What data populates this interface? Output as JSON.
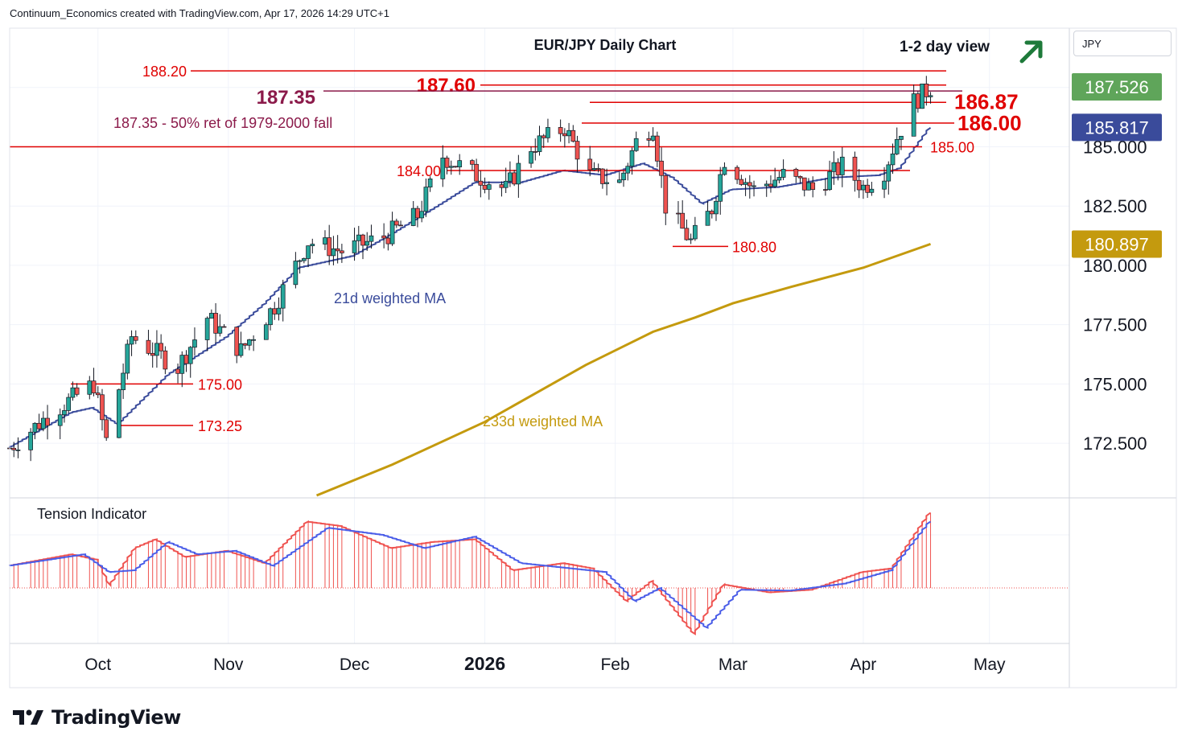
{
  "header": {
    "attribution": "Continuum_Economics created with TradingView.com, Apr 17, 2026 14:29 UTC+1"
  },
  "currency_label": "JPY",
  "brand": {
    "name": "TradingView"
  },
  "colors": {
    "bull": "#26a69a",
    "bear": "#ef5350",
    "ma21": "#3a4b9b",
    "ma233": "#c49a0e",
    "level": "#e00000",
    "ret": "#8b1a4a",
    "arrow": "#1e7a3a",
    "last_price": "#5fa55a"
  },
  "chart_data": [
    {
      "type": "candlestick",
      "title": "EUR/JPY Daily Chart",
      "view_note": "1-2 day view",
      "view_direction": "up",
      "ylim": [
        170.3,
        190.0
      ],
      "y_ticks": [
        "172.500",
        "175.000",
        "177.500",
        "180.000",
        "182.500",
        "185.000"
      ],
      "x_ticks": [
        {
          "label": "Oct",
          "date": "2025-10-01"
        },
        {
          "label": "Nov",
          "date": "2025-11-01"
        },
        {
          "label": "Dec",
          "date": "2025-12-01"
        },
        {
          "label": "2026",
          "date": "2026-01-01"
        },
        {
          "label": "Feb",
          "date": "2026-02-01"
        },
        {
          "label": "Mar",
          "date": "2026-03-01"
        },
        {
          "label": "Apr",
          "date": "2026-04-01"
        },
        {
          "label": "May",
          "date": "2026-05-01"
        }
      ],
      "xrange": [
        "2025-09-10",
        "2026-05-20"
      ],
      "price_badges": [
        {
          "value": "187.526",
          "color": "#5fa55a"
        },
        {
          "value": "185.817",
          "color": "#3a4b9b"
        },
        {
          "value": "180.897",
          "color": "#c49a0e"
        }
      ],
      "levels": [
        {
          "label": "188.20",
          "value": 188.2
        },
        {
          "label": "187.60",
          "value": 187.6
        },
        {
          "label": "187.35",
          "value": 187.35
        },
        {
          "label": "186.87",
          "value": 186.87
        },
        {
          "label": "186.00",
          "value": 186.0
        },
        {
          "label": "185.00",
          "value": 185.0
        },
        {
          "label": "184.00",
          "value": 184.0
        },
        {
          "label": "180.80",
          "value": 180.8
        },
        {
          "label": "175.00",
          "value": 175.0
        },
        {
          "label": "173.25",
          "value": 173.25
        }
      ],
      "annotations": [
        {
          "text": "187.35 - 50% ret of 1979-2000 fall"
        },
        {
          "text": "21d weighted MA"
        },
        {
          "text": "233d weighted MA"
        }
      ],
      "anchors": [
        [
          "2025-09-10",
          172.3
        ],
        [
          "2025-09-20",
          173.8
        ],
        [
          "2025-09-30",
          175.0
        ],
        [
          "2025-10-03",
          172.6
        ],
        [
          "2025-10-09",
          177.0
        ],
        [
          "2025-10-20",
          175.7
        ],
        [
          "2025-10-27",
          177.8
        ],
        [
          "2025-11-04",
          176.4
        ],
        [
          "2025-11-12",
          178.3
        ],
        [
          "2025-11-20",
          181.0
        ],
        [
          "2025-11-28",
          180.6
        ],
        [
          "2025-12-08",
          181.2
        ],
        [
          "2025-12-16",
          182.1
        ],
        [
          "2025-12-22",
          184.6
        ],
        [
          "2025-12-30",
          183.8
        ],
        [
          "2026-01-06",
          183.2
        ],
        [
          "2026-01-12",
          185.0
        ],
        [
          "2026-01-20",
          185.8
        ],
        [
          "2026-01-26",
          183.8
        ],
        [
          "2026-02-02",
          183.5
        ],
        [
          "2026-02-06",
          185.2
        ],
        [
          "2026-02-10",
          185.9
        ],
        [
          "2026-02-13",
          182.5
        ],
        [
          "2026-02-19",
          181.0
        ],
        [
          "2026-02-24",
          182.4
        ],
        [
          "2026-02-27",
          184.5
        ],
        [
          "2026-03-06",
          183.2
        ],
        [
          "2026-03-13",
          183.8
        ],
        [
          "2026-03-20",
          183.2
        ],
        [
          "2026-03-27",
          184.2
        ],
        [
          "2026-04-01",
          183.3
        ],
        [
          "2026-04-06",
          184.0
        ],
        [
          "2026-04-09",
          185.4
        ],
        [
          "2026-04-13",
          186.9
        ],
        [
          "2026-04-17",
          187.5
        ]
      ],
      "ma21_anchors": [
        [
          "2025-09-10",
          172.3
        ],
        [
          "2025-09-25",
          173.8
        ],
        [
          "2025-09-30",
          174.0
        ],
        [
          "2025-10-06",
          173.3
        ],
        [
          "2025-10-18",
          175.4
        ],
        [
          "2025-11-01",
          177.0
        ],
        [
          "2025-11-10",
          178.4
        ],
        [
          "2025-11-18",
          179.9
        ],
        [
          "2025-12-01",
          180.4
        ],
        [
          "2025-12-10",
          181.3
        ],
        [
          "2025-12-22",
          182.6
        ],
        [
          "2025-12-30",
          183.5
        ],
        [
          "2026-01-10",
          183.5
        ],
        [
          "2026-01-20",
          184.0
        ],
        [
          "2026-01-30",
          183.8
        ],
        [
          "2026-02-08",
          184.3
        ],
        [
          "2026-02-15",
          183.7
        ],
        [
          "2026-02-22",
          182.6
        ],
        [
          "2026-03-01",
          183.2
        ],
        [
          "2026-03-12",
          183.3
        ],
        [
          "2026-03-25",
          183.7
        ],
        [
          "2026-04-05",
          183.8
        ],
        [
          "2026-04-10",
          184.1
        ],
        [
          "2026-04-17",
          185.8
        ]
      ],
      "ma233_anchors": [
        [
          "2025-11-22",
          170.3
        ],
        [
          "2025-12-10",
          171.6
        ],
        [
          "2026-01-01",
          173.4
        ],
        [
          "2026-01-25",
          175.8
        ],
        [
          "2026-02-10",
          177.2
        ],
        [
          "2026-02-20",
          177.8
        ],
        [
          "2026-03-01",
          178.4
        ],
        [
          "2026-03-15",
          179.1
        ],
        [
          "2026-04-01",
          179.9
        ],
        [
          "2026-04-17",
          180.9
        ]
      ]
    },
    {
      "type": "bar",
      "title": "Tension Indicator",
      "anchors": [
        [
          "2025-09-10",
          0.25
        ],
        [
          "2025-09-25",
          0.38
        ],
        [
          "2025-10-01",
          0.32
        ],
        [
          "2025-10-04",
          0.03
        ],
        [
          "2025-10-10",
          0.45
        ],
        [
          "2025-10-15",
          0.55
        ],
        [
          "2025-10-22",
          0.35
        ],
        [
          "2025-11-01",
          0.42
        ],
        [
          "2025-11-10",
          0.28
        ],
        [
          "2025-11-20",
          0.75
        ],
        [
          "2025-11-28",
          0.7
        ],
        [
          "2025-12-10",
          0.45
        ],
        [
          "2025-12-20",
          0.52
        ],
        [
          "2025-12-30",
          0.55
        ],
        [
          "2026-01-08",
          0.2
        ],
        [
          "2026-01-20",
          0.28
        ],
        [
          "2026-01-27",
          0.22
        ],
        [
          "2026-02-04",
          -0.15
        ],
        [
          "2026-02-10",
          0.08
        ],
        [
          "2026-02-20",
          -0.52
        ],
        [
          "2026-02-27",
          0.04
        ],
        [
          "2026-03-10",
          -0.05
        ],
        [
          "2026-03-20",
          -0.02
        ],
        [
          "2026-04-01",
          0.18
        ],
        [
          "2026-04-08",
          0.22
        ],
        [
          "2026-04-17",
          0.85
        ]
      ],
      "signal_anchors": [
        [
          "2025-09-10",
          0.25
        ],
        [
          "2025-09-28",
          0.38
        ],
        [
          "2025-10-04",
          0.18
        ],
        [
          "2025-10-10",
          0.2
        ],
        [
          "2025-10-18",
          0.52
        ],
        [
          "2025-10-25",
          0.38
        ],
        [
          "2025-11-03",
          0.42
        ],
        [
          "2025-11-12",
          0.25
        ],
        [
          "2025-11-25",
          0.68
        ],
        [
          "2025-12-08",
          0.6
        ],
        [
          "2025-12-18",
          0.45
        ],
        [
          "2025-12-30",
          0.58
        ],
        [
          "2026-01-10",
          0.28
        ],
        [
          "2026-01-20",
          0.23
        ],
        [
          "2026-01-30",
          0.18
        ],
        [
          "2026-02-06",
          -0.15
        ],
        [
          "2026-02-12",
          0.0
        ],
        [
          "2026-02-23",
          -0.45
        ],
        [
          "2026-03-03",
          -0.02
        ],
        [
          "2026-03-15",
          -0.03
        ],
        [
          "2026-03-28",
          0.05
        ],
        [
          "2026-04-08",
          0.2
        ],
        [
          "2026-04-17",
          0.75
        ]
      ]
    }
  ]
}
